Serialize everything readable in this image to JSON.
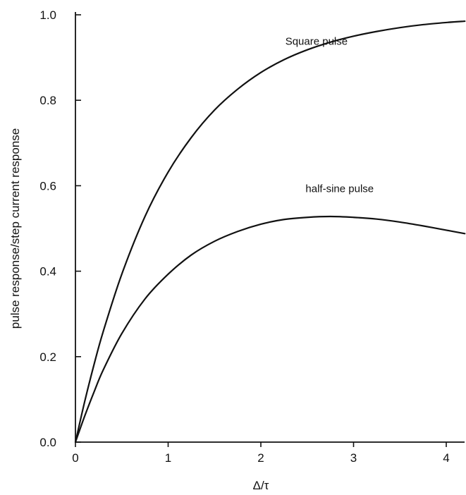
{
  "chart_data": {
    "type": "line",
    "title": "",
    "xlabel": "Δ/τ",
    "ylabel": "pulse  response/step  current  response",
    "xlim": [
      0,
      4.2
    ],
    "ylim": [
      0,
      1.0
    ],
    "x_ticks": [
      "0",
      "1",
      "2",
      "3",
      "4"
    ],
    "y_ticks": [
      "0.0",
      "0.2",
      "0.4",
      "0.6",
      "0.8",
      "1.0"
    ],
    "grid": false,
    "series": [
      {
        "name": "Square pulse",
        "x": [
          0,
          0.1,
          0.2,
          0.3,
          0.5,
          0.75,
          1.0,
          1.25,
          1.5,
          1.75,
          2.0,
          2.25,
          2.5,
          2.75,
          3.0,
          3.25,
          3.5,
          3.75,
          4.0,
          4.2
        ],
        "values": [
          0,
          0.095,
          0.181,
          0.259,
          0.393,
          0.528,
          0.632,
          0.713,
          0.777,
          0.826,
          0.865,
          0.895,
          0.918,
          0.936,
          0.95,
          0.961,
          0.97,
          0.977,
          0.982,
          0.985
        ]
      },
      {
        "name": "half-sine  pulse",
        "x": [
          0,
          0.1,
          0.2,
          0.3,
          0.5,
          0.75,
          1.0,
          1.25,
          1.5,
          1.75,
          2.0,
          2.25,
          2.5,
          2.75,
          3.0,
          3.25,
          3.5,
          3.75,
          4.0,
          4.2
        ],
        "values": [
          0,
          0.061,
          0.117,
          0.169,
          0.254,
          0.335,
          0.393,
          0.438,
          0.47,
          0.493,
          0.51,
          0.521,
          0.526,
          0.528,
          0.526,
          0.522,
          0.515,
          0.506,
          0.496,
          0.488
        ]
      }
    ],
    "annotations": [
      {
        "text": "Square pulse",
        "x": 2.6,
        "y": 0.93,
        "series": 0
      },
      {
        "text": "half-sine  pulse",
        "x": 2.85,
        "y": 0.585,
        "series": 1
      }
    ]
  }
}
